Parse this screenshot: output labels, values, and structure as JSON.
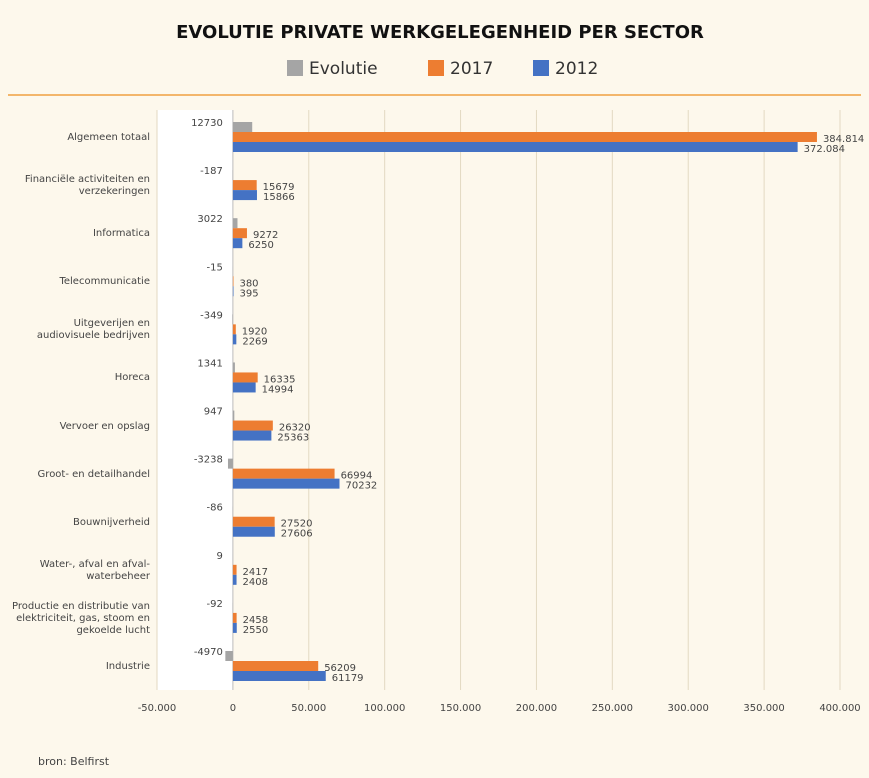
{
  "chart_data": {
    "type": "barh",
    "title": "EVOLUTIE PRIVATE WERKGELEGENHEID PER SECTOR",
    "categories": [
      "Algemeen totaal",
      "Financiële activiteiten en verzekeringen",
      "Informatica",
      "Telecommunicatie",
      "Uitgeverijen en audiovisuele bedrijven",
      "Horeca",
      "Vervoer en opslag",
      "Groot- en detailhandel",
      "Bouwnijverheid",
      "Water-, afval en afval-waterbeheer",
      "Productie en distributie van elektriciteit, gas, stoom en gekoelde lucht",
      "Industrie"
    ],
    "series": [
      {
        "name": "Evolutie",
        "color": "#a5a5a5",
        "values": [
          12730,
          -187,
          3022,
          -15,
          -349,
          1341,
          947,
          -3238,
          -86,
          9,
          -92,
          -4970
        ]
      },
      {
        "name": "2017",
        "color": "#ed7d31",
        "values": [
          384814,
          15679,
          9272,
          380,
          1920,
          16335,
          26320,
          66994,
          27520,
          2417,
          2458,
          56209
        ],
        "value_labels": [
          "384.814",
          "15679",
          "9272",
          "380",
          "1920",
          "16335",
          "26320",
          "66994",
          "27520",
          "2417",
          "2458",
          "56209"
        ]
      },
      {
        "name": "2012",
        "color": "#4472c4",
        "values": [
          372084,
          15866,
          6250,
          395,
          2269,
          14994,
          25363,
          70232,
          27606,
          2408,
          2550,
          61179
        ],
        "value_labels": [
          "372.084",
          "15866",
          "6250",
          "395",
          "2269",
          "14994",
          "25363",
          "70232",
          "27606",
          "2408",
          "2550",
          "61179"
        ]
      }
    ],
    "xlim": [
      -50000,
      400000
    ],
    "xticks": [
      {
        "value": -50000,
        "label": "-50.000"
      },
      0,
      {
        "value": 50000,
        "label": "50.000"
      },
      {
        "value": 100000,
        "label": "100.000"
      },
      {
        "value": 150000,
        "label": "150.000"
      },
      {
        "value": 200000,
        "label": "200.000"
      },
      {
        "value": 250000,
        "label": "250.000"
      },
      {
        "value": 300000,
        "label": "300.000"
      },
      {
        "value": 350000,
        "label": "350.000"
      },
      {
        "value": 400000,
        "label": "400.000"
      }
    ],
    "grid": true,
    "source": "bron: Belfirst"
  }
}
